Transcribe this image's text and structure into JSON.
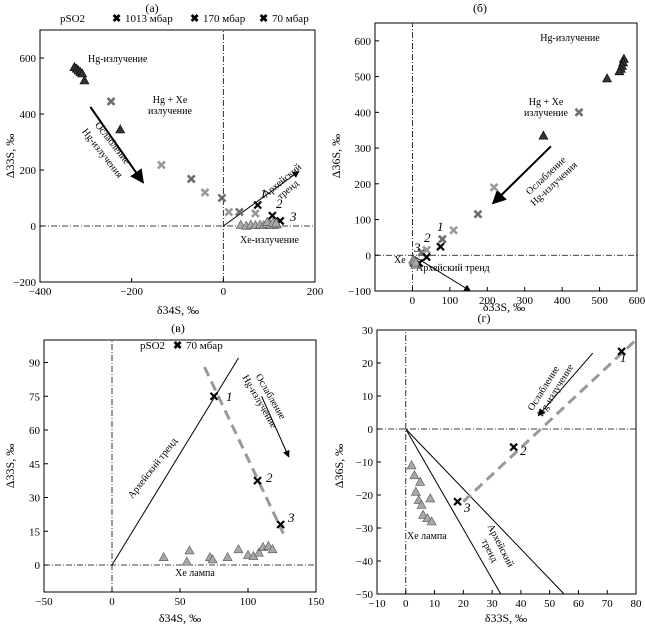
{
  "legend": {
    "prefix": "pSO2",
    "items": [
      {
        "label": "1013 мбар",
        "color": "#6e6e6e"
      },
      {
        "label": "170 мбар",
        "color": "#9a9a9a"
      },
      {
        "label": "70 мбар",
        "color": "#000000"
      }
    ],
    "single": "70 мбар"
  },
  "colors": {
    "hg": "#333333",
    "xe": "#a8a8a8",
    "p1013": "#6e6e6e",
    "p170": "#9a9a9a",
    "p70": "#000000",
    "trend_dashed": "#999999"
  },
  "chart_data": [
    {
      "panel": "(а)",
      "type": "scatter",
      "xlabel": "δ34S, ‰",
      "ylabel": "Δ33S, ‰",
      "xlim": [
        -400,
        200
      ],
      "ylim": [
        -200,
        700
      ],
      "xticks": [
        -400,
        -200,
        0,
        200
      ],
      "yticks": [
        -200,
        0,
        200,
        400,
        600
      ],
      "series": [
        {
          "name": "Hg-излучение",
          "marker": "triangle",
          "points": [
            [
              -325,
              568
            ],
            [
              -320,
              562
            ],
            [
              -316,
              556
            ],
            [
              -312,
              550
            ],
            [
              -308,
              545
            ],
            [
              -303,
              520
            ],
            [
              -225,
              345
            ]
          ]
        },
        {
          "name": "1013 мбар",
          "marker": "x",
          "points": [
            [
              -245,
              445
            ],
            [
              -70,
              168
            ],
            [
              -3,
              100
            ],
            [
              35,
              50
            ]
          ]
        },
        {
          "name": "170 мбар",
          "marker": "x",
          "points": [
            [
              -135,
              218
            ],
            [
              -40,
              120
            ],
            [
              12,
              50
            ],
            [
              70,
              45
            ]
          ]
        },
        {
          "name": "70 мбар",
          "marker": "x",
          "points": [
            [
              75,
              75
            ],
            [
              107,
              37
            ],
            [
              124,
              18
            ]
          ]
        },
        {
          "name": "Xe-излучение",
          "marker": "triangle",
          "points": [
            [
              38,
              4
            ],
            [
              50,
              1
            ],
            [
              60,
              5
            ],
            [
              70,
              3
            ],
            [
              80,
              5
            ],
            [
              88,
              3
            ],
            [
              95,
              8
            ],
            [
              102,
              5
            ],
            [
              110,
              3
            ],
            [
              117,
              6
            ],
            [
              96,
              15
            ],
            [
              108,
              12
            ],
            [
              115,
              10
            ]
          ]
        }
      ],
      "lines": [
        {
          "label": "Архейский тренд",
          "from": [
            0,
            0
          ],
          "to": [
            165,
            195
          ]
        }
      ],
      "arrows": [
        {
          "label": "Ослабление Hg-излучения",
          "from": [
            -290,
            425
          ],
          "to": [
            -175,
            155
          ]
        }
      ],
      "annotations": [
        "Hg-излучение",
        "Hg + Xe",
        "излучение",
        "Архейский",
        "тренд",
        "Xe-излучение",
        "Ослабление",
        "Hg-излучения"
      ],
      "point_labels": [
        "1",
        "2",
        "3"
      ]
    },
    {
      "panel": "(б)",
      "type": "scatter",
      "xlabel": "δ33S, ‰",
      "ylabel": "Δ36S, ‰",
      "xlim": [
        -100,
        600
      ],
      "ylim": [
        -100,
        650
      ],
      "xticks": [
        0,
        100,
        200,
        300,
        400,
        500,
        600
      ],
      "yticks": [
        -100,
        0,
        100,
        200,
        300,
        400,
        500,
        600
      ],
      "series": [
        {
          "name": "Hg-излучение",
          "marker": "triangle",
          "points": [
            [
              565,
              550
            ],
            [
              563,
              540
            ],
            [
              560,
              530
            ],
            [
              557,
              522
            ],
            [
              553,
              515
            ],
            [
              520,
              495
            ],
            [
              350,
              335
            ]
          ]
        },
        {
          "name": "1013 мбар",
          "marker": "x",
          "points": [
            [
              445,
              400
            ],
            [
              175,
              115
            ],
            [
              80,
              45
            ],
            [
              25,
              8
            ]
          ]
        },
        {
          "name": "170 мбар",
          "marker": "x",
          "points": [
            [
              218,
              190
            ],
            [
              110,
              70
            ],
            [
              38,
              15
            ]
          ]
        },
        {
          "name": "70 мбар",
          "marker": "x",
          "points": [
            [
              75,
              24
            ],
            [
              38,
              -5
            ],
            [
              18,
              -22
            ]
          ]
        },
        {
          "name": "Xe",
          "marker": "triangle",
          "points": [
            [
              2,
              -12
            ],
            [
              4,
              -18
            ],
            [
              6,
              -22
            ],
            [
              8,
              -26
            ],
            [
              5,
              -15
            ],
            [
              9,
              -20
            ]
          ]
        }
      ],
      "lines": [
        {
          "label": "Архейский тренд",
          "from": [
            0,
            0
          ],
          "to": [
            155,
            -100
          ]
        }
      ],
      "arrows": [
        {
          "label": "Ослабление Hg-излучения",
          "from": [
            370,
            305
          ],
          "to": [
            215,
            145
          ]
        }
      ],
      "annotations": [
        "Hg-излучение",
        "Hg + Xe",
        "излучение",
        "Ослабление",
        "Hg-излучения",
        "Архейский тренд",
        "Xe"
      ],
      "point_labels": [
        "1",
        "2",
        "3"
      ]
    },
    {
      "panel": "(в)",
      "type": "scatter",
      "xlabel": "δ34S, ‰",
      "ylabel": "Δ33S, ‰",
      "xlim": [
        -50,
        150
      ],
      "ylim": [
        -12,
        100
      ],
      "xticks": [
        -50,
        0,
        50,
        100,
        150
      ],
      "yticks": [
        0,
        15,
        30,
        45,
        60,
        75,
        90
      ],
      "series": [
        {
          "name": "70 мбар",
          "marker": "x",
          "points": [
            [
              75,
              75
            ],
            [
              107,
              37.5
            ],
            [
              124,
              18
            ]
          ]
        },
        {
          "name": "Xe лампа",
          "marker": "triangle",
          "points": [
            [
              38,
              3.5
            ],
            [
              55,
              1.5
            ],
            [
              57,
              6.5
            ],
            [
              72,
              3.5
            ],
            [
              74,
              2.5
            ],
            [
              85,
              3.5
            ],
            [
              93,
              7
            ],
            [
              100,
              4.5
            ],
            [
              104,
              4
            ],
            [
              108,
              5.5
            ],
            [
              111,
              8
            ],
            [
              115,
              8.5
            ],
            [
              118,
              7
            ]
          ]
        }
      ],
      "lines": [
        {
          "label": "Архейский тренд",
          "from": [
            0,
            0
          ],
          "to": [
            93,
            92
          ]
        },
        {
          "label": "",
          "style": "dashed",
          "from": [
            68,
            88
          ],
          "to": [
            126,
            14
          ]
        }
      ],
      "arrows": [
        {
          "label": "Ослабление Hg-излучения",
          "from": [
            110,
            75
          ],
          "to": [
            130,
            48
          ]
        }
      ],
      "annotations": [
        "Архейский тренд",
        "Ослабление",
        "Hg-излучение",
        "Xe лампа"
      ],
      "point_labels": [
        "1",
        "2",
        "3"
      ]
    },
    {
      "panel": "(г)",
      "type": "scatter",
      "xlabel": "δ33S, ‰",
      "ylabel": "Δ36S, ‰",
      "xlim": [
        -10,
        80
      ],
      "ylim": [
        -50,
        30
      ],
      "xticks": [
        -10,
        0,
        10,
        20,
        30,
        40,
        50,
        60,
        70,
        80
      ],
      "yticks": [
        -50,
        -40,
        -30,
        -20,
        -10,
        0,
        10,
        20,
        30
      ],
      "series": [
        {
          "name": "70 мбар",
          "marker": "x",
          "points": [
            [
              75,
              23.5
            ],
            [
              37.5,
              -5.5
            ],
            [
              18,
              -22
            ]
          ]
        },
        {
          "name": "Xe лампа",
          "marker": "triangle",
          "points": [
            [
              2,
              -11
            ],
            [
              3,
              -14
            ],
            [
              3.5,
              -19
            ],
            [
              4.5,
              -21.5
            ],
            [
              5,
              -16
            ],
            [
              5.5,
              -23
            ],
            [
              6,
              -26
            ],
            [
              7.5,
              -27
            ],
            [
              8.5,
              -21
            ],
            [
              9,
              -28
            ]
          ]
        }
      ],
      "lines": [
        {
          "label": "Архейский тренд",
          "from": [
            0,
            0
          ],
          "to": [
            33,
            -50
          ]
        },
        {
          "label": "",
          "from": [
            0,
            0
          ],
          "to": [
            55,
            -50
          ]
        },
        {
          "label": "",
          "style": "dashed",
          "from": [
            20,
            -22
          ],
          "to": [
            80,
            27
          ]
        }
      ],
      "arrows": [
        {
          "label": "Ослабление Hg-излучения",
          "from": [
            65,
            23
          ],
          "to": [
            46,
            4
          ]
        }
      ],
      "annotations": [
        "Ослабление",
        "Hg-излучение",
        "Архейский",
        "тренд",
        "Xe лампа"
      ],
      "point_labels": [
        "1",
        "2",
        "3"
      ]
    }
  ]
}
